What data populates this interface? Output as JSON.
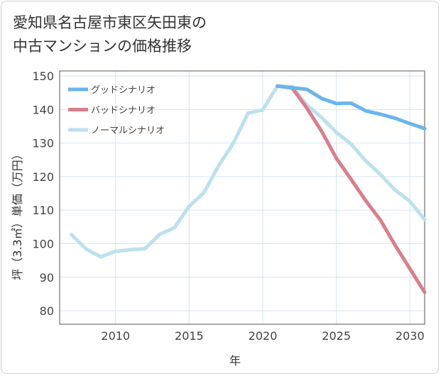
{
  "title_line1": "愛知県名古屋市東区矢田東の",
  "title_line2": "中古マンションの価格推移",
  "chart_data": {
    "type": "line",
    "title": "愛知県名古屋市東区矢田東の中古マンションの価格推移",
    "xlabel": "年",
    "ylabel": "坪（3.3㎡）単価（万円）",
    "xlim": [
      2006.2,
      2031
    ],
    "ylim": [
      76,
      151.5
    ],
    "xticks": [
      2010,
      2015,
      2020,
      2025,
      2030
    ],
    "yticks": [
      80,
      90,
      100,
      110,
      120,
      130,
      140,
      150
    ],
    "grid": true,
    "legend_position": "top-left",
    "series": [
      {
        "name": "グッドシナリオ",
        "color": "#6ab4ee",
        "x": [
          2021,
          2022,
          2023,
          2024,
          2025,
          2026,
          2027,
          2028,
          2029,
          2030,
          2031
        ],
        "y": [
          147,
          146.5,
          146,
          143.3,
          141.8,
          141.9,
          139.6,
          138.6,
          137.4,
          135.8,
          134.3
        ]
      },
      {
        "name": "バッドシナリオ",
        "color": "#d87f8a",
        "x": [
          2021,
          2022,
          2023,
          2024,
          2025,
          2026,
          2027,
          2028,
          2029,
          2030,
          2031
        ],
        "y": [
          147,
          146.4,
          140.4,
          133.5,
          125.5,
          119.2,
          112.8,
          107,
          99.5,
          92.5,
          85.5
        ]
      },
      {
        "name": "ノーマルシナリオ",
        "color": "#bde0ee",
        "x": [
          2007,
          2008,
          2009,
          2010,
          2011,
          2012,
          2013,
          2014,
          2015,
          2016,
          2017,
          2018,
          2019,
          2020,
          2021,
          2022,
          2023,
          2024,
          2025,
          2026,
          2027,
          2028,
          2029,
          2030,
          2031
        ],
        "y": [
          102.7,
          98.4,
          96.1,
          97.7,
          98.2,
          98.5,
          102.8,
          104.8,
          111.2,
          115.2,
          123.2,
          130,
          138.9,
          139.9,
          147,
          146.8,
          141.3,
          137.6,
          133.2,
          129.7,
          124.7,
          120.6,
          116,
          112.6,
          107.2
        ]
      }
    ]
  }
}
